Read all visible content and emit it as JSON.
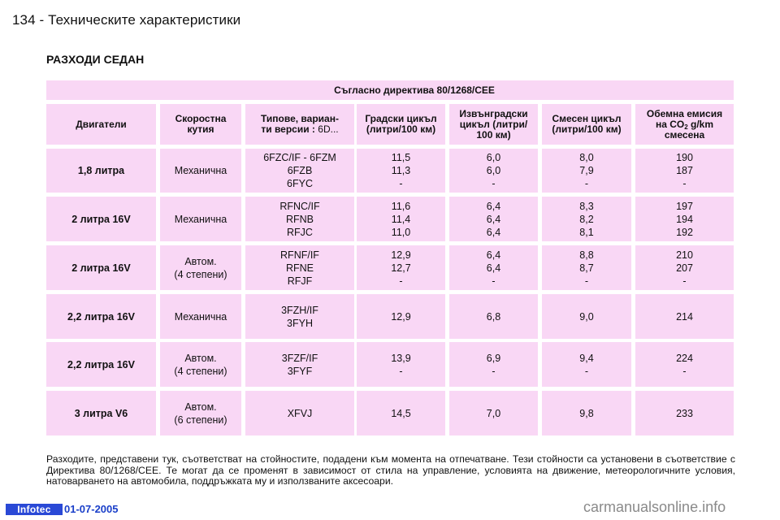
{
  "header": {
    "page_title": "134 - Техническите характеристики",
    "section_title": "РАЗХОДИ СЕДАН"
  },
  "table": {
    "directive": "Съгласно директива 80/1268/CEE",
    "columns": {
      "engines": "Двигатели",
      "gearbox_line1": "Скоростна",
      "gearbox_line2": "кутия",
      "types_line1": "Типове, вариан-",
      "types_line2_bold": "ти версии :",
      "types_line2_normal": " 6D...",
      "urban_line1": "Градски цикъл",
      "urban_line2": "(литри/100 км)",
      "extra_line1": "Извънградски",
      "extra_line2": "цикъл (литри/",
      "extra_line3": "100 км)",
      "mixed_line1": "Смесен цикъл",
      "mixed_line2": "(литри/100 км)",
      "co2_line1": "Обемна емисия",
      "co2_line2_pre": "на CO",
      "co2_line2_sub": "2",
      "co2_line2_post": " g/km",
      "co2_line3": "смесена"
    },
    "rows": [
      {
        "engine": "1,8 литра",
        "gearbox": [
          "Механична"
        ],
        "types": [
          "6FZC/IF - 6FZM",
          "6FZB",
          "6FYC"
        ],
        "urban": [
          "11,5",
          "11,3",
          "-"
        ],
        "extra": [
          "6,0",
          "6,0",
          "-"
        ],
        "mixed": [
          "8,0",
          "7,9",
          "-"
        ],
        "co2": [
          "190",
          "187",
          "-"
        ]
      },
      {
        "engine": "2 литра 16V",
        "gearbox": [
          "Механична"
        ],
        "types": [
          "RFNC/IF",
          "RFNB",
          "RFJC"
        ],
        "urban": [
          "11,6",
          "11,4",
          "11,0"
        ],
        "extra": [
          "6,4",
          "6,4",
          "6,4"
        ],
        "mixed": [
          "8,3",
          "8,2",
          "8,1"
        ],
        "co2": [
          "197",
          "194",
          "192"
        ]
      },
      {
        "engine": "2 литра 16V",
        "gearbox": [
          "Автом.",
          "(4 степени)"
        ],
        "types": [
          "RFNF/IF",
          "RFNE",
          "RFJF"
        ],
        "urban": [
          "12,9",
          "12,7",
          "-"
        ],
        "extra": [
          "6,4",
          "6,4",
          "-"
        ],
        "mixed": [
          "8,8",
          "8,7",
          "-"
        ],
        "co2": [
          "210",
          "207",
          "-"
        ]
      },
      {
        "engine": "2,2 литра 16V",
        "gearbox": [
          "Механична"
        ],
        "types": [
          "3FZH/IF",
          "3FYH"
        ],
        "urban": [
          "12,9"
        ],
        "extra": [
          "6,8"
        ],
        "mixed": [
          "9,0"
        ],
        "co2": [
          "214"
        ]
      },
      {
        "engine": "2,2 литра 16V",
        "gearbox": [
          "Автом.",
          "(4 степени)"
        ],
        "types": [
          "3FZF/IF",
          "3FYF"
        ],
        "urban": [
          "13,9",
          "-"
        ],
        "extra": [
          "6,9",
          "-"
        ],
        "mixed": [
          "9,4",
          "-"
        ],
        "co2": [
          "224",
          "-"
        ]
      },
      {
        "engine": "3 литра V6",
        "gearbox": [
          "Автом.",
          "(6 степени)"
        ],
        "types": [
          "XFVJ"
        ],
        "urban": [
          "14,5"
        ],
        "extra": [
          "7,0"
        ],
        "mixed": [
          "9,8"
        ],
        "co2": [
          "233"
        ]
      }
    ]
  },
  "footnote": "Разходите, представени тук, съответстват на стойностите, подадени към момента на отпечатване. Тези стойности са установени в съответствие с Директива 80/1268/CEE. Те могат да се променят в зависимост от стила на управление, условията на движение, метеорологичните условия, натоварването на автомобила, поддръжката му и използваните аксесоари.",
  "footer": {
    "badge": "Infotec",
    "date": "01-07-2005",
    "watermark": "carmanualsonline.info"
  },
  "colors": {
    "cell_background": "#f9d7f5",
    "footer_badge": "#2a49d6",
    "footer_date": "#1a3fc9",
    "watermark": "#8a8a8a"
  }
}
